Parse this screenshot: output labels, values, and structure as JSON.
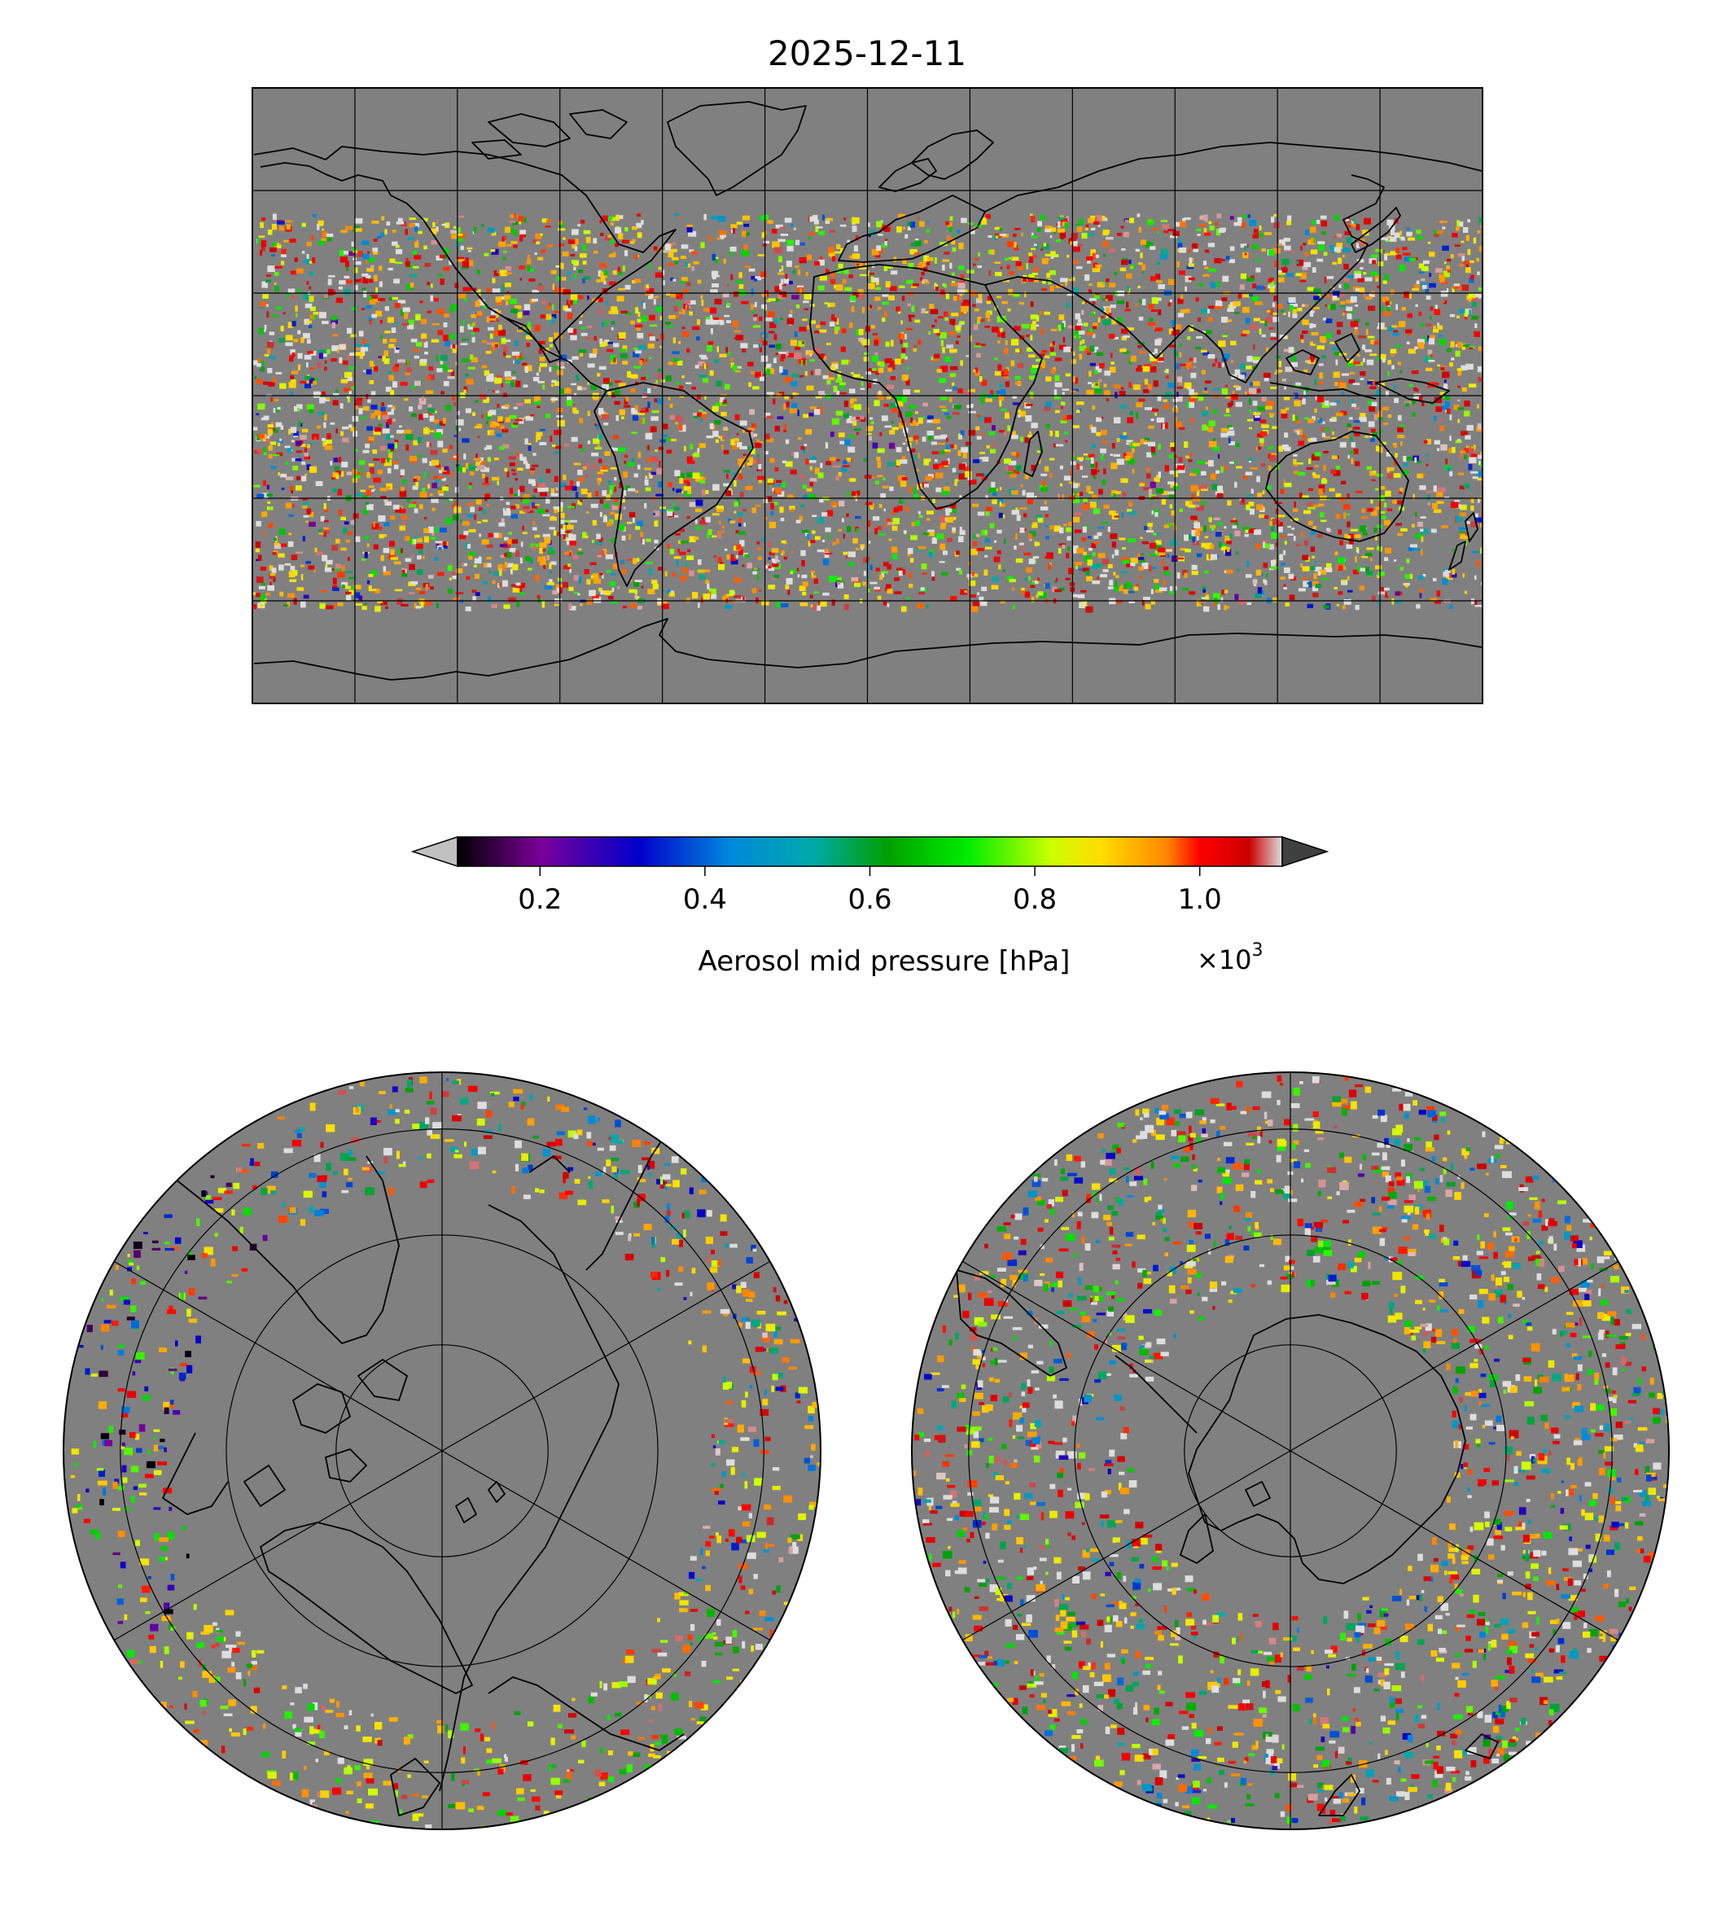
{
  "figure": {
    "title": "2025-12-11"
  },
  "colorbar": {
    "label": "Aerosol mid pressure [hPa]",
    "multiplier_base": "×10",
    "multiplier_exp": "3",
    "ticks": [
      {
        "value": 0.2,
        "label": "0.2"
      },
      {
        "value": 0.4,
        "label": "0.4"
      },
      {
        "value": 0.6,
        "label": "0.6"
      },
      {
        "value": 0.8,
        "label": "0.8"
      },
      {
        "value": 1.0,
        "label": "1.0"
      }
    ],
    "range": [
      0.1,
      1.1
    ],
    "extend": "both",
    "under_color": "#c0c0c0",
    "over_color": "#404040",
    "colormap_stops": [
      {
        "v": 0.0,
        "c": "#000000"
      },
      {
        "v": 0.1,
        "c": "#7a0098"
      },
      {
        "v": 0.22,
        "c": "#0000cc"
      },
      {
        "v": 0.33,
        "c": "#0088dd"
      },
      {
        "v": 0.43,
        "c": "#00aaaa"
      },
      {
        "v": 0.52,
        "c": "#00a000"
      },
      {
        "v": 0.62,
        "c": "#00ee00"
      },
      {
        "v": 0.72,
        "c": "#ccff00"
      },
      {
        "v": 0.78,
        "c": "#ffdd00"
      },
      {
        "v": 0.86,
        "c": "#ff8800"
      },
      {
        "v": 0.9,
        "c": "#ff0000"
      },
      {
        "v": 0.96,
        "c": "#cc0000"
      },
      {
        "v": 1.0,
        "c": "#dddddd"
      }
    ]
  },
  "maps": {
    "background_color": "#808080",
    "global": {
      "projection": "plate-carree",
      "lon_grid_step": 30,
      "lat_grid_step": 30
    },
    "north_polar": {
      "projection": "north-polar-stereographic"
    },
    "south_polar": {
      "projection": "south-polar-stereographic"
    }
  }
}
